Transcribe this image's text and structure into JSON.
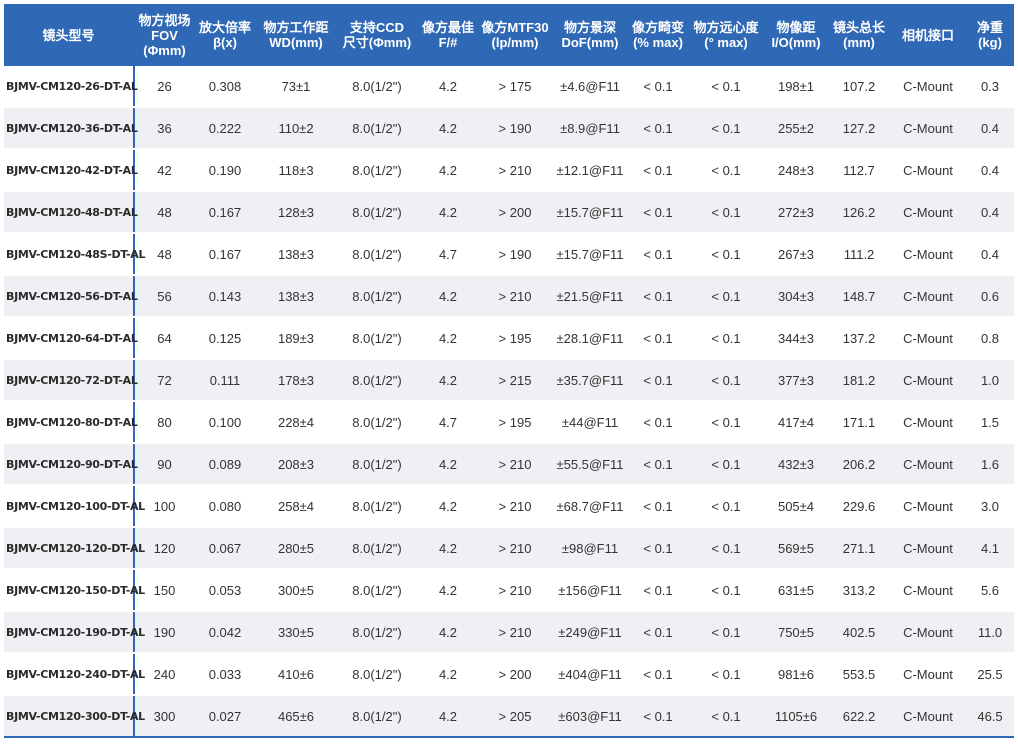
{
  "headers": [
    [
      "镜头型号"
    ],
    [
      "物方视场",
      "FOV",
      "(Φmm)"
    ],
    [
      "放大倍率",
      "β(x)"
    ],
    [
      "物方工作距",
      "WD(mm)"
    ],
    [
      "支持CCD",
      "尺寸(Φmm)"
    ],
    [
      "像方最佳",
      "F/#"
    ],
    [
      "像方MTF30",
      "(lp/mm)"
    ],
    [
      "物方景深",
      "DoF(mm)"
    ],
    [
      "像方畸变",
      "(% max)"
    ],
    [
      "物方远心度",
      "(° max)"
    ],
    [
      "物像距",
      "I/O(mm)"
    ],
    [
      "镜头总长",
      "(mm)"
    ],
    [
      "相机接口"
    ],
    [
      "净重",
      "(kg)"
    ]
  ],
  "rows": [
    [
      "BJMV-CM120-26-DT-AL",
      "26",
      "0.308",
      "73±1",
      "8.0(1/2\")",
      "4.2",
      "> 175",
      "±4.6@F11",
      "< 0.1",
      "< 0.1",
      "198±1",
      "107.2",
      "C-Mount",
      "0.3"
    ],
    [
      "BJMV-CM120-36-DT-AL",
      "36",
      "0.222",
      "110±2",
      "8.0(1/2\")",
      "4.2",
      "> 190",
      "±8.9@F11",
      "< 0.1",
      "< 0.1",
      "255±2",
      "127.2",
      "C-Mount",
      "0.4"
    ],
    [
      "BJMV-CM120-42-DT-AL",
      "42",
      "0.190",
      "118±3",
      "8.0(1/2\")",
      "4.2",
      "> 210",
      "±12.1@F11",
      "< 0.1",
      "< 0.1",
      "248±3",
      "112.7",
      "C-Mount",
      "0.4"
    ],
    [
      "BJMV-CM120-48-DT-AL",
      "48",
      "0.167",
      "128±3",
      "8.0(1/2\")",
      "4.2",
      "> 200",
      "±15.7@F11",
      "< 0.1",
      "< 0.1",
      "272±3",
      "126.2",
      "C-Mount",
      "0.4"
    ],
    [
      "BJMV-CM120-48S-DT-AL",
      "48",
      "0.167",
      "138±3",
      "8.0(1/2\")",
      "4.7",
      "> 190",
      "±15.7@F11",
      "< 0.1",
      "< 0.1",
      "267±3",
      "111.2",
      "C-Mount",
      "0.4"
    ],
    [
      "BJMV-CM120-56-DT-AL",
      "56",
      "0.143",
      "138±3",
      "8.0(1/2\")",
      "4.2",
      "> 210",
      "±21.5@F11",
      "< 0.1",
      "< 0.1",
      "304±3",
      "148.7",
      "C-Mount",
      "0.6"
    ],
    [
      "BJMV-CM120-64-DT-AL",
      "64",
      "0.125",
      "189±3",
      "8.0(1/2\")",
      "4.2",
      "> 195",
      "±28.1@F11",
      "< 0.1",
      "< 0.1",
      "344±3",
      "137.2",
      "C-Mount",
      "0.8"
    ],
    [
      "BJMV-CM120-72-DT-AL",
      "72",
      "0.111",
      "178±3",
      "8.0(1/2\")",
      "4.2",
      "> 215",
      "±35.7@F11",
      "< 0.1",
      "< 0.1",
      "377±3",
      "181.2",
      "C-Mount",
      "1.0"
    ],
    [
      "BJMV-CM120-80-DT-AL",
      "80",
      "0.100",
      "228±4",
      "8.0(1/2\")",
      "4.7",
      "> 195",
      "±44@F11",
      "< 0.1",
      "< 0.1",
      "417±4",
      "171.1",
      "C-Mount",
      "1.5"
    ],
    [
      "BJMV-CM120-90-DT-AL",
      "90",
      "0.089",
      "208±3",
      "8.0(1/2\")",
      "4.2",
      "> 210",
      "±55.5@F11",
      "< 0.1",
      "< 0.1",
      "432±3",
      "206.2",
      "C-Mount",
      "1.6"
    ],
    [
      "BJMV-CM120-100-DT-AL",
      "100",
      "0.080",
      "258±4",
      "8.0(1/2\")",
      "4.2",
      "> 210",
      "±68.7@F11",
      "< 0.1",
      "< 0.1",
      "505±4",
      "229.6",
      "C-Mount",
      "3.0"
    ],
    [
      "BJMV-CM120-120-DT-AL",
      "120",
      "0.067",
      "280±5",
      "8.0(1/2\")",
      "4.2",
      "> 210",
      "±98@F11",
      "< 0.1",
      "< 0.1",
      "569±5",
      "271.1",
      "C-Mount",
      "4.1"
    ],
    [
      "BJMV-CM120-150-DT-AL",
      "150",
      "0.053",
      "300±5",
      "8.0(1/2\")",
      "4.2",
      "> 210",
      "±156@F11",
      "< 0.1",
      "< 0.1",
      "631±5",
      "313.2",
      "C-Mount",
      "5.6"
    ],
    [
      "BJMV-CM120-190-DT-AL",
      "190",
      "0.042",
      "330±5",
      "8.0(1/2\")",
      "4.2",
      "> 210",
      "±249@F11",
      "< 0.1",
      "< 0.1",
      "750±5",
      "402.5",
      "C-Mount",
      "11.0"
    ],
    [
      "BJMV-CM120-240-DT-AL",
      "240",
      "0.033",
      "410±6",
      "8.0(1/2\")",
      "4.2",
      "> 200",
      "±404@F11",
      "< 0.1",
      "< 0.1",
      "981±6",
      "553.5",
      "C-Mount",
      "25.5"
    ],
    [
      "BJMV-CM120-300-DT-AL",
      "300",
      "0.027",
      "465±6",
      "8.0(1/2\")",
      "4.2",
      "> 205",
      "±603@F11",
      "< 0.1",
      "< 0.1",
      "1105±6",
      "622.2",
      "C-Mount",
      "46.5"
    ]
  ],
  "colors": {
    "header_bg": "#2f68b4",
    "header_text": "#ffffff",
    "row_alt_bg": "#eef0f3",
    "body_text": "#333333"
  }
}
